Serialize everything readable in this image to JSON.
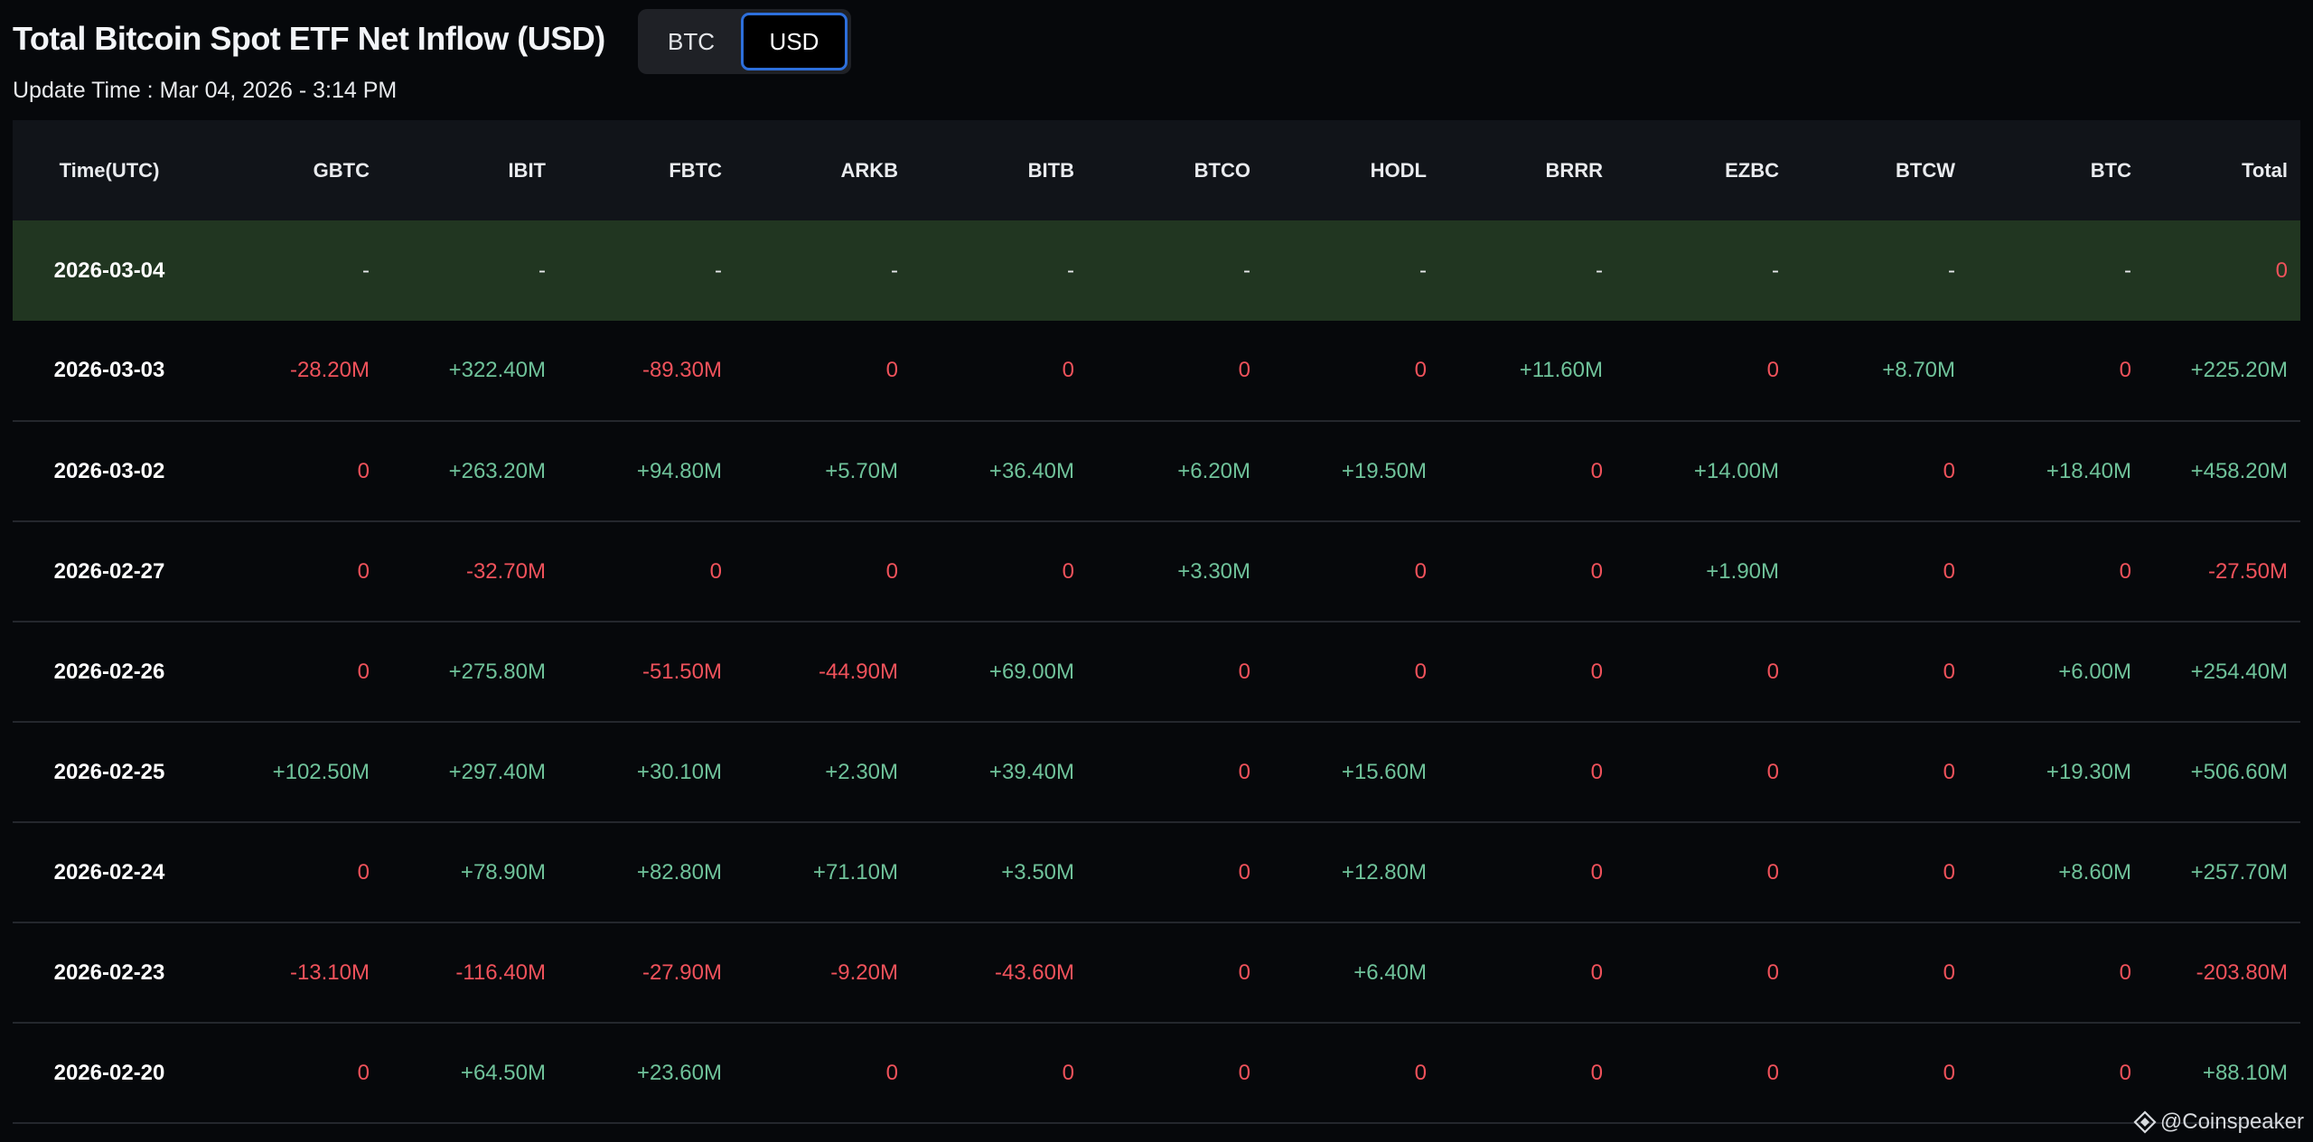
{
  "header": {
    "title": "Total Bitcoin Spot ETF Net Inflow (USD)",
    "update_time": "Update Time : Mar 04, 2026 - 3:14 PM"
  },
  "toggle": {
    "options": [
      "BTC",
      "USD"
    ],
    "selected": "USD"
  },
  "colors": {
    "positive": "#6fc29a",
    "negative": "#f0525b",
    "highlight_row": "#213621",
    "toggle_active_border": "#2d6fdb"
  },
  "table": {
    "columns": [
      "Time(UTC)",
      "GBTC",
      "IBIT",
      "FBTC",
      "ARKB",
      "BITB",
      "BTCO",
      "HODL",
      "BRRR",
      "EZBC",
      "BTCW",
      "BTC",
      "Total"
    ],
    "rows": [
      [
        "2026-03-04",
        "-",
        "-",
        "-",
        "-",
        "-",
        "-",
        "-",
        "-",
        "-",
        "-",
        "-",
        "0"
      ],
      [
        "2026-03-03",
        "-28.20M",
        "+322.40M",
        "-89.30M",
        "0",
        "0",
        "0",
        "0",
        "+11.60M",
        "0",
        "+8.70M",
        "0",
        "+225.20M"
      ],
      [
        "2026-03-02",
        "0",
        "+263.20M",
        "+94.80M",
        "+5.70M",
        "+36.40M",
        "+6.20M",
        "+19.50M",
        "0",
        "+14.00M",
        "0",
        "+18.40M",
        "+458.20M"
      ],
      [
        "2026-02-27",
        "0",
        "-32.70M",
        "0",
        "0",
        "0",
        "+3.30M",
        "0",
        "0",
        "+1.90M",
        "0",
        "0",
        "-27.50M"
      ],
      [
        "2026-02-26",
        "0",
        "+275.80M",
        "-51.50M",
        "-44.90M",
        "+69.00M",
        "0",
        "0",
        "0",
        "0",
        "0",
        "+6.00M",
        "+254.40M"
      ],
      [
        "2026-02-25",
        "+102.50M",
        "+297.40M",
        "+30.10M",
        "+2.30M",
        "+39.40M",
        "0",
        "+15.60M",
        "0",
        "0",
        "0",
        "+19.30M",
        "+506.60M"
      ],
      [
        "2026-02-24",
        "0",
        "+78.90M",
        "+82.80M",
        "+71.10M",
        "+3.50M",
        "0",
        "+12.80M",
        "0",
        "0",
        "0",
        "+8.60M",
        "+257.70M"
      ],
      [
        "2026-02-23",
        "-13.10M",
        "-116.40M",
        "-27.90M",
        "-9.20M",
        "-43.60M",
        "0",
        "+6.40M",
        "0",
        "0",
        "0",
        "0",
        "-203.80M"
      ],
      [
        "2026-02-20",
        "0",
        "+64.50M",
        "+23.60M",
        "0",
        "0",
        "0",
        "0",
        "0",
        "0",
        "0",
        "0",
        "+88.10M"
      ]
    ]
  },
  "watermark": {
    "text": "@Coinspeaker",
    "icon": "coinspeaker-logo-icon"
  }
}
